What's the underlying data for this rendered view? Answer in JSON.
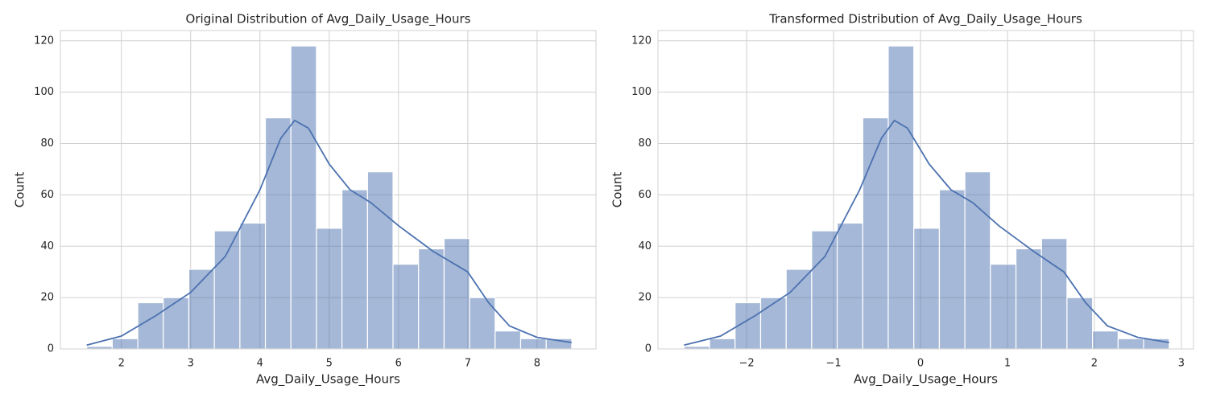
{
  "chart_data": [
    {
      "type": "histogram",
      "title": "Original Distribution of Avg_Daily_Usage_Hours",
      "xlabel": "Avg_Daily_Usage_Hours",
      "ylabel": "Count",
      "color": "#4c72b0",
      "grid": true,
      "bins": [
        1.5,
        1.868,
        2.237,
        2.605,
        2.974,
        3.342,
        3.711,
        4.079,
        4.447,
        4.816,
        5.184,
        5.553,
        5.921,
        6.289,
        6.658,
        7.026,
        7.395,
        7.763,
        8.132,
        8.5
      ],
      "counts": [
        1,
        4,
        18,
        20,
        31,
        46,
        49,
        90,
        118,
        47,
        62,
        69,
        33,
        39,
        43,
        20,
        7,
        4,
        4
      ],
      "kde": {
        "x": [
          1.5,
          2,
          2.5,
          3,
          3.5,
          4,
          4.3,
          4.5,
          4.7,
          5,
          5.3,
          5.6,
          6,
          6.5,
          7,
          7.3,
          7.6,
          8,
          8.5
        ],
        "values": [
          1.5,
          5,
          13,
          22,
          36,
          62,
          82,
          89,
          86,
          72,
          62,
          57,
          48,
          38,
          30,
          18,
          9,
          4.5,
          2.5
        ]
      },
      "xlim": [
        1.12,
        8.85
      ],
      "ylim": [
        0,
        124
      ],
      "xticks": [
        2,
        3,
        4,
        5,
        6,
        7,
        8
      ],
      "yticks": [
        0,
        20,
        40,
        60,
        80,
        100,
        120
      ]
    },
    {
      "type": "histogram",
      "title": "Transformed Distribution of Avg_Daily_Usage_Hours",
      "xlabel": "Avg_Daily_Usage_Hours",
      "ylabel": "Count",
      "color": "#4c72b0",
      "grid": true,
      "bins": [
        -2.72,
        -2.426,
        -2.133,
        -1.839,
        -1.545,
        -1.252,
        -0.958,
        -0.664,
        -0.371,
        -0.077,
        0.217,
        0.51,
        0.804,
        1.098,
        1.392,
        1.685,
        1.979,
        2.273,
        2.566,
        2.86
      ],
      "counts": [
        1,
        4,
        18,
        20,
        31,
        46,
        49,
        90,
        118,
        47,
        62,
        69,
        33,
        39,
        43,
        20,
        7,
        4,
        4
      ],
      "kde": {
        "x": [
          -2.72,
          -2.3,
          -1.9,
          -1.5,
          -1.1,
          -0.7,
          -0.45,
          -0.3,
          -0.15,
          0.1,
          0.35,
          0.6,
          0.9,
          1.3,
          1.65,
          1.9,
          2.15,
          2.5,
          2.86
        ],
        "values": [
          1.5,
          5,
          13,
          22,
          36,
          62,
          82,
          89,
          86,
          72,
          62,
          57,
          48,
          38,
          30,
          18,
          9,
          4.5,
          2.5
        ]
      },
      "xlim": [
        -3.02,
        3.14
      ],
      "ylim": [
        0,
        124
      ],
      "xticks": [
        {
          "value": -2,
          "label": "−2"
        },
        {
          "value": -1,
          "label": "−1"
        },
        0,
        1,
        2,
        3
      ],
      "yticks": [
        0,
        20,
        40,
        60,
        80,
        100,
        120
      ]
    }
  ]
}
